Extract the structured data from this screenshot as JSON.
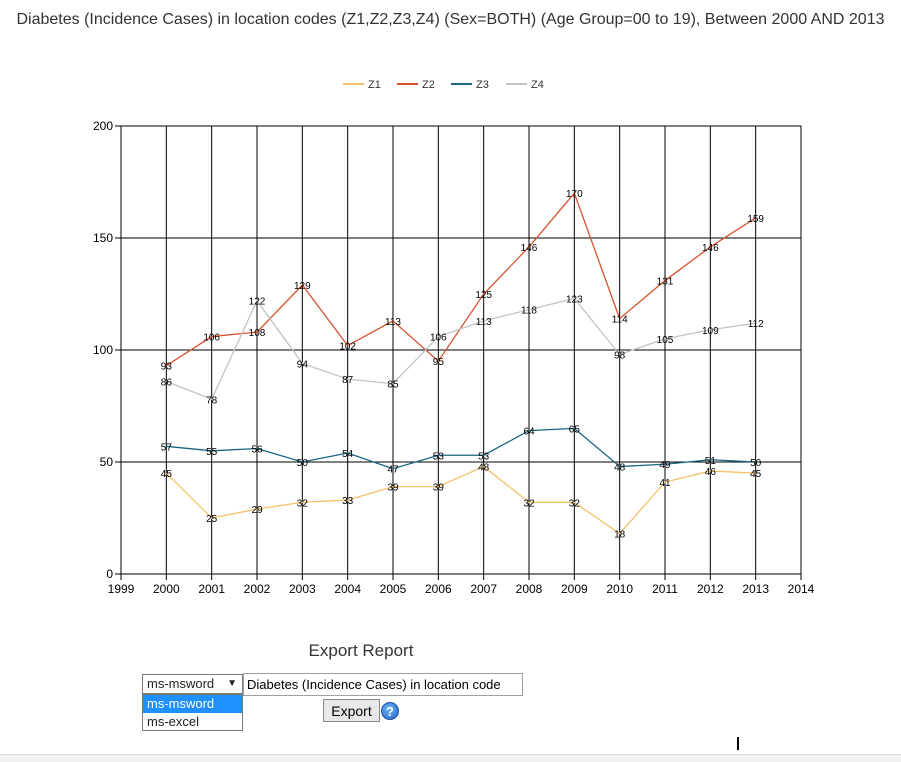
{
  "chart_data": {
    "type": "line",
    "title": "Diabetes (Incidence Cases) in location codes (Z1,Z2,Z3,Z4) (Sex=BOTH) (Age Group=00 to 19), Between 2000 AND 2013",
    "xlabel": "",
    "ylabel": "",
    "x_ticks": [
      1999,
      2000,
      2001,
      2002,
      2003,
      2004,
      2005,
      2006,
      2007,
      2008,
      2009,
      2010,
      2011,
      2012,
      2013,
      2014
    ],
    "xlim": [
      1999,
      2014
    ],
    "y_ticks": [
      0,
      50,
      100,
      150,
      200
    ],
    "ylim": [
      0,
      200
    ],
    "grid": true,
    "legend_position": "top",
    "x": [
      2000,
      2001,
      2002,
      2003,
      2004,
      2005,
      2006,
      2007,
      2008,
      2009,
      2010,
      2011,
      2012,
      2013
    ],
    "series": [
      {
        "name": "Z1",
        "color": "#f5c16c",
        "values": [
          45,
          25,
          29,
          32,
          33,
          39,
          39,
          48,
          32,
          32,
          18,
          41,
          46,
          45
        ]
      },
      {
        "name": "Z2",
        "color": "#d9522f",
        "values": [
          93,
          106,
          108,
          129,
          102,
          113,
          95,
          125,
          146,
          170,
          114,
          131,
          146,
          159
        ]
      },
      {
        "name": "Z3",
        "color": "#1a6580",
        "values": [
          57,
          55,
          56,
          50,
          54,
          47,
          53,
          53,
          64,
          65,
          48,
          49,
          51,
          50
        ]
      },
      {
        "name": "Z4",
        "color": "#c3c3c3",
        "values": [
          86,
          78,
          122,
          94,
          87,
          85,
          106,
          113,
          118,
          123,
          98,
          105,
          109,
          112
        ]
      }
    ]
  },
  "export": {
    "title": "Export Report",
    "format_selected": "ms-msword",
    "format_options": [
      "ms-msword",
      "ms-excel"
    ],
    "report_name_value": "Diabetes (Incidence Cases) in location code",
    "export_button_label": "Export",
    "help_icon": "help-question-icon"
  }
}
